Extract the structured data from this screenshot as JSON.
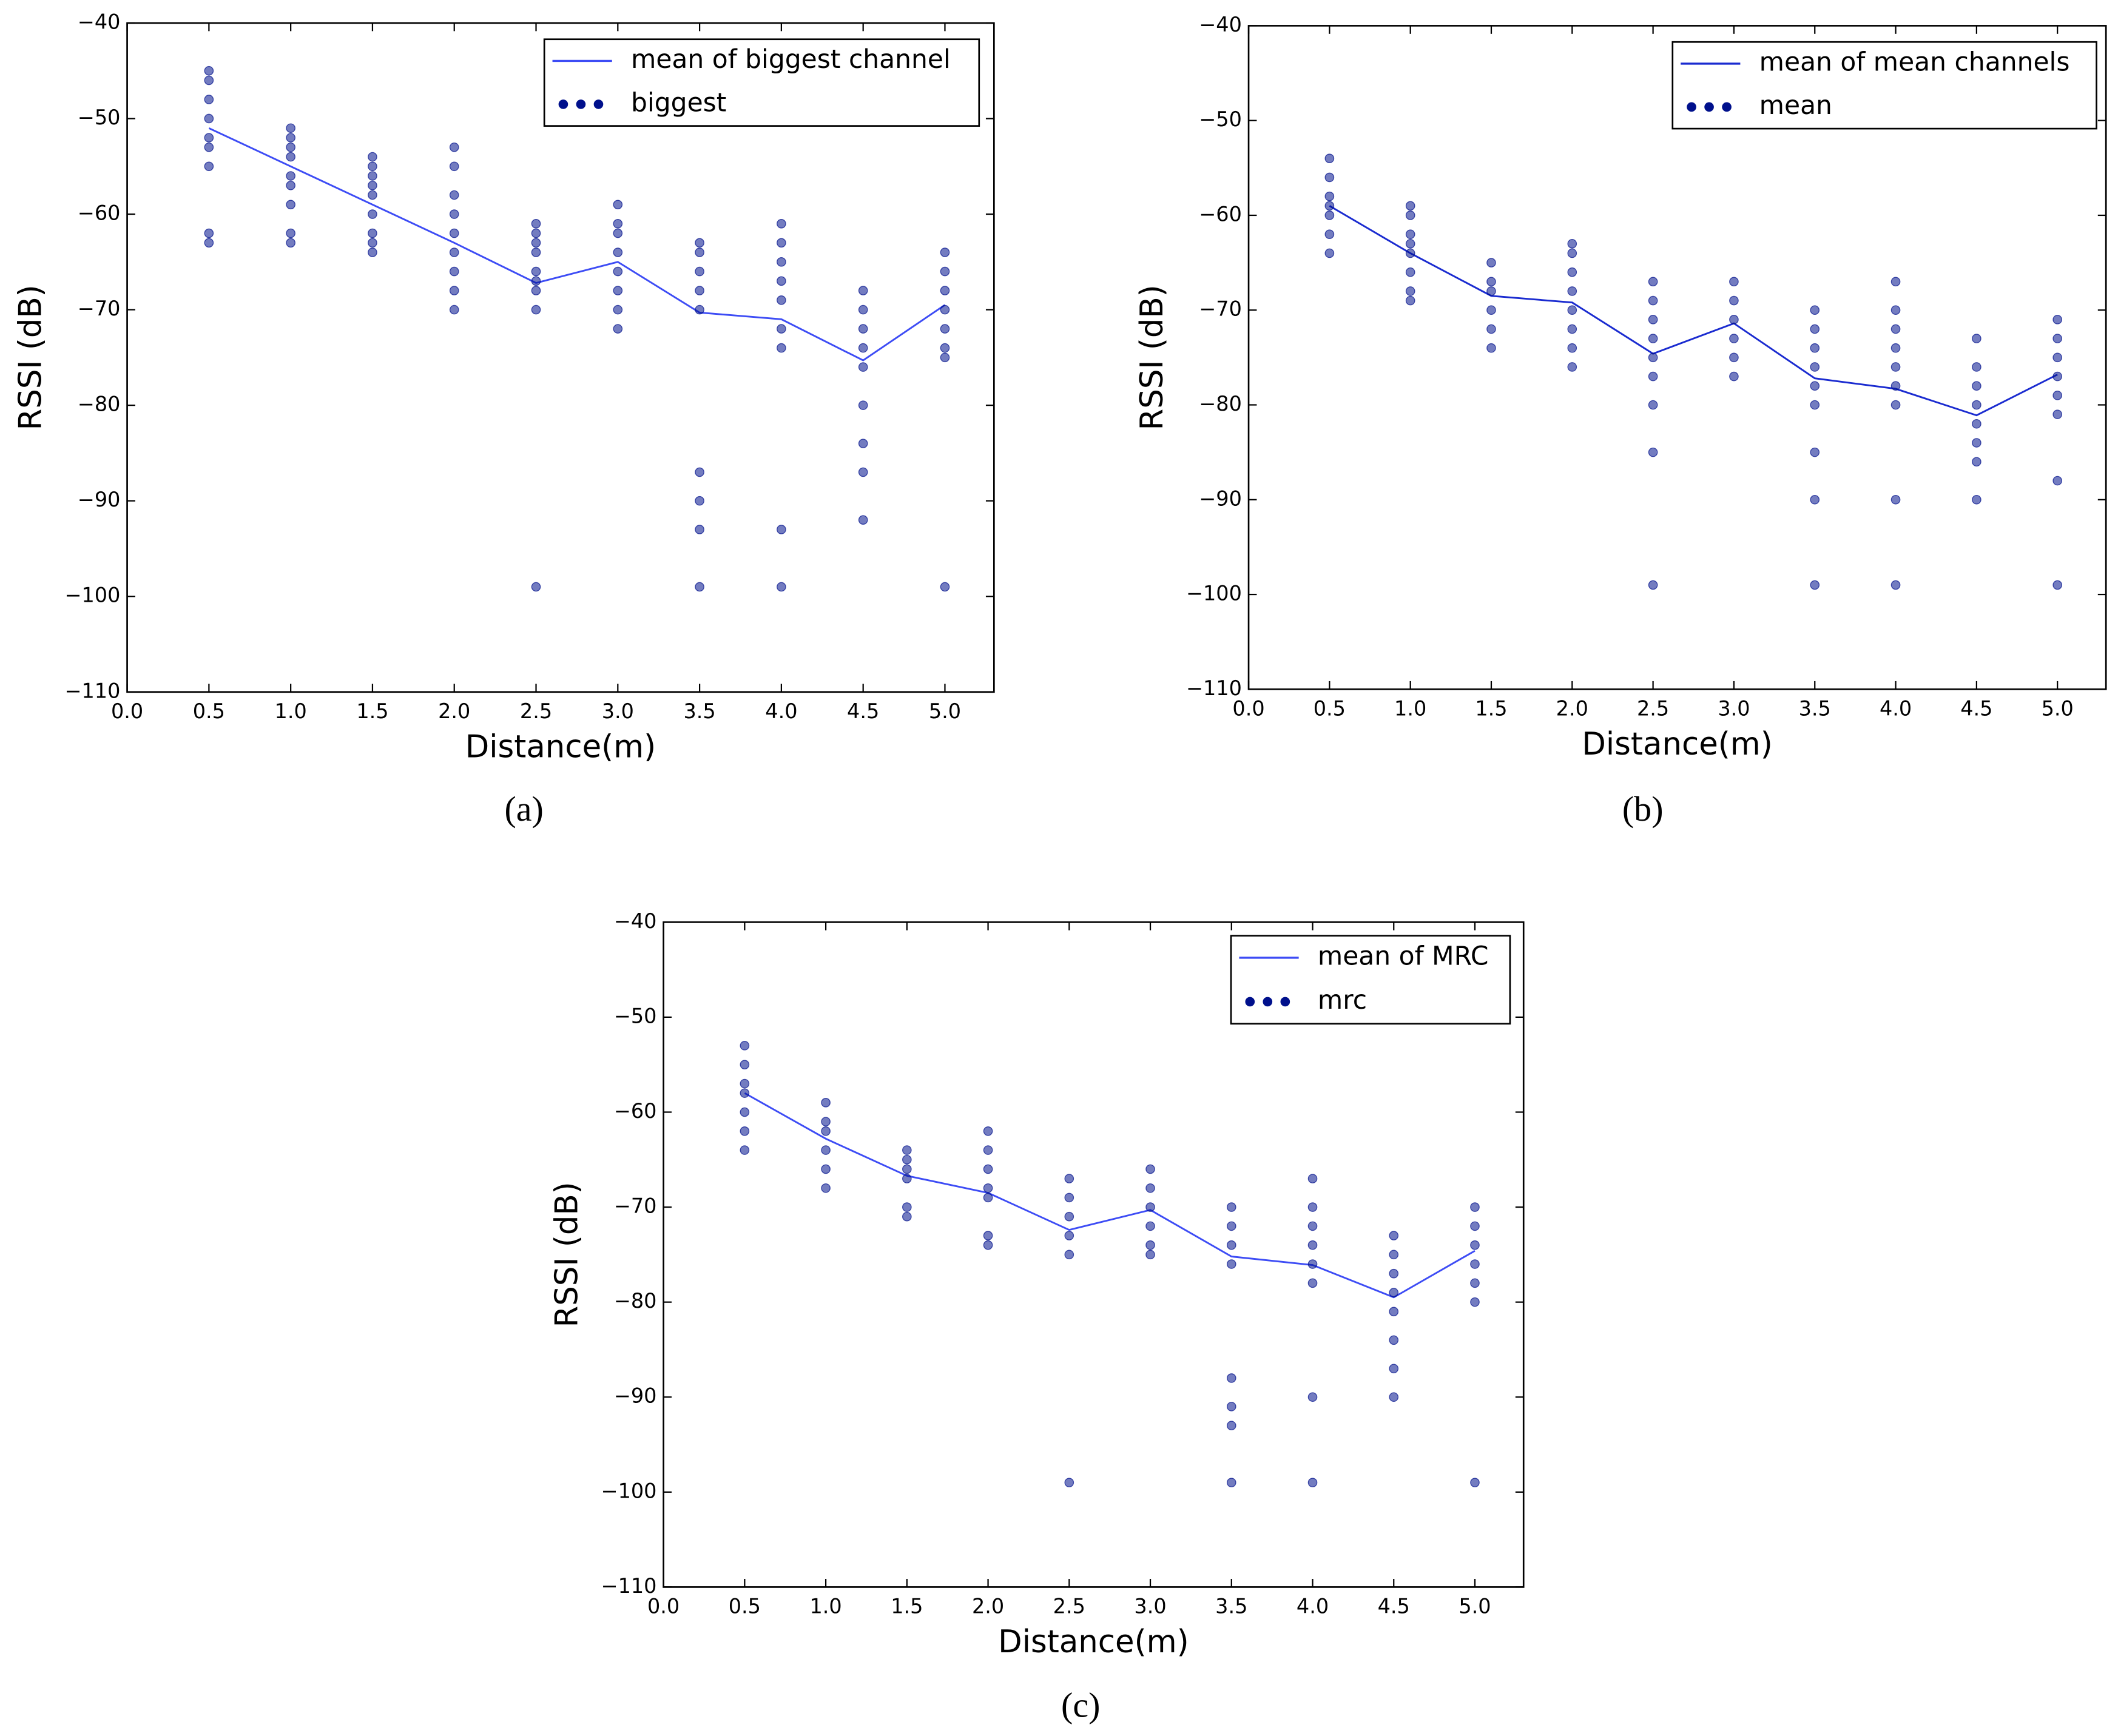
{
  "chart_data": [
    {
      "type": "line",
      "label": "(a)",
      "xlabel": "Distance(m)",
      "ylabel": "RSSI (dB)",
      "xlim": [
        0,
        5.3
      ],
      "ylim": [
        -110,
        -40
      ],
      "xticks": [
        {
          "value": 0,
          "label": "0.0"
        },
        {
          "value": 0.5,
          "label": "0.5"
        },
        {
          "value": 1,
          "label": "1.0"
        },
        {
          "value": 1.5,
          "label": "1.5"
        },
        {
          "value": 2,
          "label": "2.0"
        },
        {
          "value": 2.5,
          "label": "2.5"
        },
        {
          "value": 3,
          "label": "3.0"
        },
        {
          "value": 3.5,
          "label": "3.5"
        },
        {
          "value": 4,
          "label": "4.0"
        },
        {
          "value": 4.5,
          "label": "4.5"
        },
        {
          "value": 5,
          "label": "5.0"
        }
      ],
      "yticks": [
        {
          "value": -110,
          "label": "−110"
        },
        {
          "value": -100,
          "label": "−100"
        },
        {
          "value": -90,
          "label": "−90"
        },
        {
          "value": -80,
          "label": "−80"
        },
        {
          "value": -70,
          "label": "−70"
        },
        {
          "value": -60,
          "label": "−60"
        },
        {
          "value": -50,
          "label": "−50"
        },
        {
          "value": -40,
          "label": "−40"
        }
      ],
      "series": [
        {
          "name": "mean of biggest channel",
          "color": "#3d4cf5",
          "kind": "line",
          "x": [
            0.5,
            1,
            1.5,
            2,
            2.5,
            3,
            3.5,
            4,
            4.5,
            5
          ],
          "values": [
            -51,
            -55,
            -59,
            -63,
            -67.2,
            -65,
            -70.3,
            -71,
            -75.3,
            -69.5
          ]
        },
        {
          "name": "biggest",
          "color": "#00108c",
          "kind": "scatter",
          "x": [
            0.5,
            0.5,
            0.5,
            0.5,
            0.5,
            0.5,
            0.5,
            0.5,
            0.5,
            1,
            1,
            1,
            1,
            1,
            1,
            1,
            1,
            1,
            1.5,
            1.5,
            1.5,
            1.5,
            1.5,
            1.5,
            1.5,
            1.5,
            1.5,
            2,
            2,
            2,
            2,
            2,
            2,
            2,
            2,
            2,
            2.5,
            2.5,
            2.5,
            2.5,
            2.5,
            2.5,
            2.5,
            2.5,
            2.5,
            3,
            3,
            3,
            3,
            3,
            3,
            3,
            3,
            3.5,
            3.5,
            3.5,
            3.5,
            3.5,
            3.5,
            3.5,
            3.5,
            3.5,
            4,
            4,
            4,
            4,
            4,
            4,
            4,
            4,
            4,
            4.5,
            4.5,
            4.5,
            4.5,
            4.5,
            4.5,
            4.5,
            4.5,
            4.5,
            5,
            5,
            5,
            5,
            5,
            5,
            5,
            5
          ],
          "values": [
            -45,
            -46,
            -48,
            -50,
            -52,
            -53,
            -55,
            -62,
            -63,
            -51,
            -52,
            -53,
            -54,
            -56,
            -57,
            -59,
            -62,
            -63,
            -54,
            -55,
            -56,
            -57,
            -58,
            -60,
            -62,
            -63,
            -64,
            -53,
            -55,
            -58,
            -60,
            -62,
            -64,
            -66,
            -68,
            -70,
            -61,
            -62,
            -63,
            -64,
            -66,
            -67,
            -68,
            -70,
            -99,
            -59,
            -61,
            -62,
            -64,
            -66,
            -68,
            -70,
            -72,
            -63,
            -64,
            -66,
            -68,
            -70,
            -87,
            -90,
            -93,
            -99,
            -61,
            -63,
            -65,
            -67,
            -69,
            -72,
            -74,
            -93,
            -99,
            -68,
            -70,
            -72,
            -74,
            -76,
            -80,
            -84,
            -87,
            -92,
            -64,
            -66,
            -68,
            -70,
            -72,
            -74,
            -75,
            -99
          ]
        }
      ]
    },
    {
      "type": "line",
      "label": "(b)",
      "xlabel": "Distance(m)",
      "ylabel": "RSSI (dB)",
      "xlim": [
        0,
        5.3
      ],
      "ylim": [
        -110,
        -40
      ],
      "xticks": [
        {
          "value": 0,
          "label": "0.0"
        },
        {
          "value": 0.5,
          "label": "0.5"
        },
        {
          "value": 1,
          "label": "1.0"
        },
        {
          "value": 1.5,
          "label": "1.5"
        },
        {
          "value": 2,
          "label": "2.0"
        },
        {
          "value": 2.5,
          "label": "2.5"
        },
        {
          "value": 3,
          "label": "3.0"
        },
        {
          "value": 3.5,
          "label": "3.5"
        },
        {
          "value": 4,
          "label": "4.0"
        },
        {
          "value": 4.5,
          "label": "4.5"
        },
        {
          "value": 5,
          "label": "5.0"
        }
      ],
      "yticks": [
        {
          "value": -110,
          "label": "−110"
        },
        {
          "value": -100,
          "label": "−100"
        },
        {
          "value": -90,
          "label": "−90"
        },
        {
          "value": -80,
          "label": "−80"
        },
        {
          "value": -70,
          "label": "−70"
        },
        {
          "value": -60,
          "label": "−60"
        },
        {
          "value": -50,
          "label": "−50"
        },
        {
          "value": -40,
          "label": "−40"
        }
      ],
      "series": [
        {
          "name": "mean of mean channels",
          "color": "#1a2bd0",
          "kind": "line",
          "x": [
            0.5,
            1,
            1.5,
            2,
            2.5,
            3,
            3.5,
            4,
            4.5,
            5
          ],
          "values": [
            -59,
            -64,
            -68.5,
            -69.2,
            -74.6,
            -71.4,
            -77.2,
            -78.3,
            -81.1,
            -76.8
          ]
        },
        {
          "name": "mean",
          "color": "#00108c",
          "kind": "scatter",
          "x": [
            0.5,
            0.5,
            0.5,
            0.5,
            0.5,
            0.5,
            0.5,
            1,
            1,
            1,
            1,
            1,
            1,
            1,
            1,
            1.5,
            1.5,
            1.5,
            1.5,
            1.5,
            1.5,
            2,
            2,
            2,
            2,
            2,
            2,
            2,
            2,
            2.5,
            2.5,
            2.5,
            2.5,
            2.5,
            2.5,
            2.5,
            2.5,
            2.5,
            3,
            3,
            3,
            3,
            3,
            3,
            3.5,
            3.5,
            3.5,
            3.5,
            3.5,
            3.5,
            3.5,
            3.5,
            3.5,
            4,
            4,
            4,
            4,
            4,
            4,
            4,
            4,
            4,
            4.5,
            4.5,
            4.5,
            4.5,
            4.5,
            4.5,
            4.5,
            4.5,
            5,
            5,
            5,
            5,
            5,
            5,
            5,
            5
          ],
          "values": [
            -54,
            -56,
            -58,
            -59,
            -60,
            -62,
            -64,
            -59,
            -60,
            -62,
            -63,
            -64,
            -66,
            -68,
            -69,
            -65,
            -67,
            -68,
            -70,
            -72,
            -74,
            -63,
            -64,
            -66,
            -68,
            -70,
            -72,
            -74,
            -76,
            -67,
            -69,
            -71,
            -73,
            -75,
            -77,
            -80,
            -85,
            -99,
            -67,
            -69,
            -71,
            -73,
            -75,
            -77,
            -70,
            -72,
            -74,
            -76,
            -78,
            -80,
            -85,
            -90,
            -99,
            -67,
            -70,
            -72,
            -74,
            -76,
            -78,
            -80,
            -90,
            -99,
            -73,
            -76,
            -78,
            -80,
            -82,
            -84,
            -86,
            -90,
            -71,
            -73,
            -75,
            -77,
            -79,
            -81,
            -88,
            -99
          ]
        }
      ]
    },
    {
      "type": "line",
      "label": "(c)",
      "xlabel": "Distance(m)",
      "ylabel": "RSSI (dB)",
      "xlim": [
        0,
        5.3
      ],
      "ylim": [
        -110,
        -40
      ],
      "xticks": [
        {
          "value": 0,
          "label": "0.0"
        },
        {
          "value": 0.5,
          "label": "0.5"
        },
        {
          "value": 1,
          "label": "1.0"
        },
        {
          "value": 1.5,
          "label": "1.5"
        },
        {
          "value": 2,
          "label": "2.0"
        },
        {
          "value": 2.5,
          "label": "2.5"
        },
        {
          "value": 3,
          "label": "3.0"
        },
        {
          "value": 3.5,
          "label": "3.5"
        },
        {
          "value": 4,
          "label": "4.0"
        },
        {
          "value": 4.5,
          "label": "4.5"
        },
        {
          "value": 5,
          "label": "5.0"
        }
      ],
      "yticks": [
        {
          "value": -110,
          "label": "−110"
        },
        {
          "value": -100,
          "label": "−100"
        },
        {
          "value": -90,
          "label": "−90"
        },
        {
          "value": -80,
          "label": "−80"
        },
        {
          "value": -70,
          "label": "−70"
        },
        {
          "value": -60,
          "label": "−60"
        },
        {
          "value": -50,
          "label": "−50"
        },
        {
          "value": -40,
          "label": "−40"
        }
      ],
      "series": [
        {
          "name": "mean of MRC",
          "color": "#3d4cf5",
          "kind": "line",
          "x": [
            0.5,
            1,
            1.5,
            2,
            2.5,
            3,
            3.5,
            4,
            4.5,
            5
          ],
          "values": [
            -58,
            -62.8,
            -66.7,
            -68.5,
            -72.4,
            -70.3,
            -75.2,
            -76.1,
            -79.5,
            -74.6
          ]
        },
        {
          "name": "mrc",
          "color": "#00108c",
          "kind": "scatter",
          "x": [
            0.5,
            0.5,
            0.5,
            0.5,
            0.5,
            0.5,
            0.5,
            1,
            1,
            1,
            1,
            1,
            1,
            1.5,
            1.5,
            1.5,
            1.5,
            1.5,
            1.5,
            2,
            2,
            2,
            2,
            2,
            2,
            2,
            2.5,
            2.5,
            2.5,
            2.5,
            2.5,
            2.5,
            3,
            3,
            3,
            3,
            3,
            3,
            3.5,
            3.5,
            3.5,
            3.5,
            3.5,
            3.5,
            3.5,
            3.5,
            4,
            4,
            4,
            4,
            4,
            4,
            4,
            4,
            4.5,
            4.5,
            4.5,
            4.5,
            4.5,
            4.5,
            4.5,
            4.5,
            5,
            5,
            5,
            5,
            5,
            5,
            5
          ],
          "values": [
            -53,
            -55,
            -57,
            -58,
            -60,
            -62,
            -64,
            -59,
            -61,
            -62,
            -64,
            -66,
            -68,
            -64,
            -65,
            -66,
            -67,
            -70,
            -71,
            -62,
            -64,
            -66,
            -68,
            -69,
            -73,
            -74,
            -67,
            -69,
            -71,
            -73,
            -75,
            -99,
            -66,
            -68,
            -70,
            -72,
            -74,
            -75,
            -70,
            -72,
            -74,
            -76,
            -88,
            -91,
            -93,
            -99,
            -67,
            -70,
            -72,
            -74,
            -76,
            -78,
            -90,
            -99,
            -73,
            -75,
            -77,
            -79,
            -81,
            -84,
            -87,
            -90,
            -70,
            -72,
            -74,
            -76,
            -78,
            -80,
            -99
          ]
        }
      ]
    }
  ]
}
